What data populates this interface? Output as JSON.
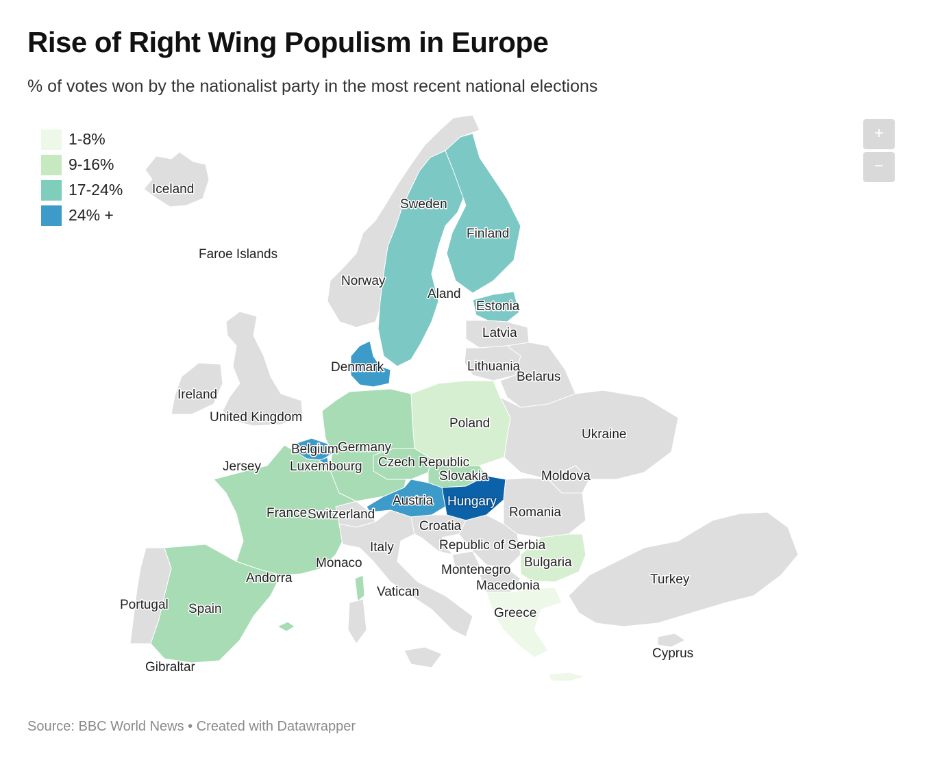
{
  "title": "Rise of Right Wing Populism in Europe",
  "subtitle": "% of votes won by the nationalist party in the most recent national elections",
  "source": "Source: BBC World News • Created with Datawrapper",
  "legend": [
    {
      "label": "1-8%",
      "color": "#edf8e9"
    },
    {
      "label": "9-16%",
      "color": "#c7e9c0"
    },
    {
      "label": "17-24%",
      "color": "#7fcdbb"
    },
    {
      "label": "24% +",
      "color": "#3d9bca"
    }
  ],
  "zoom": {
    "in_label": "+",
    "out_label": "−"
  },
  "colors": {
    "no_data": "#dedede",
    "bin_1": "#edf8e9",
    "bin_2": "#d6efd0",
    "bin_3": "#a8dcb5",
    "bin_4": "#7cc8c4",
    "bin_5": "#3d9bca",
    "bin_6": "#0b62a8"
  },
  "countries": {
    "iceland": "Iceland",
    "faroe": "Faroe Islands",
    "norway": "Norway",
    "sweden": "Sweden",
    "finland": "Finland",
    "aland": "Aland",
    "estonia": "Estonia",
    "latvia": "Latvia",
    "lithuania": "Lithuania",
    "belarus": "Belarus",
    "denmark": "Denmark",
    "ireland": "Ireland",
    "uk": "United Kingdom",
    "poland": "Poland",
    "ukraine": "Ukraine",
    "germany": "Germany",
    "belgium": "Belgium",
    "luxembourg": "Luxembourg",
    "jersey": "Jersey",
    "czech": "Czech Republic",
    "slovakia": "Slovakia",
    "moldova": "Moldova",
    "austria": "Austria",
    "hungary": "Hungary",
    "romania": "Romania",
    "france": "France",
    "switzerland": "Switzerland",
    "croatia": "Croatia",
    "italy": "Italy",
    "serbia": "Republic of Serbia",
    "monaco": "Monaco",
    "bulgaria": "Bulgaria",
    "andorra": "Andorra",
    "montenegro": "Montenegro",
    "macedonia": "Macedonia",
    "turkey": "Turkey",
    "vatican": "Vatican",
    "portugal": "Portugal",
    "spain": "Spain",
    "greece": "Greece",
    "cyprus": "Cyprus",
    "gibraltar": "Gibraltar"
  }
}
